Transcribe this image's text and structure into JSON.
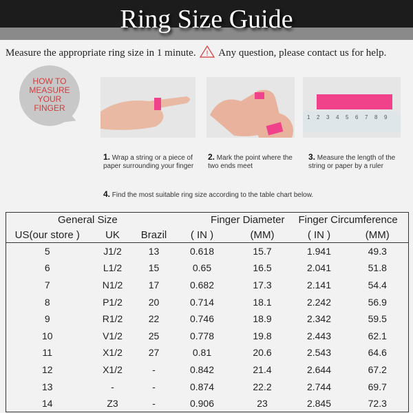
{
  "title": "Ring Size Guide",
  "intro": {
    "before": "Measure the appropriate ring size in 1 minute.",
    "after": "Any question, please contact us for help."
  },
  "bubble": {
    "line1": "HOW TO",
    "line2": "MEASURE",
    "line3": "YOUR",
    "line4": "FINGER"
  },
  "colors": {
    "accent": "#d13c3c",
    "tape": "#f0428a"
  },
  "ruler_numbers": [
    "1",
    "2",
    "3",
    "4",
    "5",
    "6",
    "7",
    "8",
    "9"
  ],
  "steps": [
    {
      "num": "1.",
      "text": "Wrap a string or a piece of paper surrounding your finger"
    },
    {
      "num": "2.",
      "text": "Mark the point where the two ends meet"
    },
    {
      "num": "3.",
      "text": "Measure the length of the string or paper by a ruler"
    },
    {
      "num": "4.",
      "text": "Find the most suitable ring size according to the table chart below."
    }
  ],
  "table": {
    "groups": [
      "General Size",
      "Finger Diameter",
      "Finger Circumference"
    ],
    "columns": [
      "US(our store )",
      "UK",
      "Brazil",
      "( IN )",
      "(MM)",
      "( IN )",
      "(MM)"
    ],
    "rows": [
      [
        "5",
        "J1/2",
        "13",
        "0.618",
        "15.7",
        "1.941",
        "49.3"
      ],
      [
        "6",
        "L1/2",
        "15",
        "0.65",
        "16.5",
        "2.041",
        "51.8"
      ],
      [
        "7",
        "N1/2",
        "17",
        "0.682",
        "17.3",
        "2.141",
        "54.4"
      ],
      [
        "8",
        "P1/2",
        "20",
        "0.714",
        "18.1",
        "2.242",
        "56.9"
      ],
      [
        "9",
        "R1/2",
        "22",
        "0.746",
        "18.9",
        "2.342",
        "59.5"
      ],
      [
        "10",
        "V1/2",
        "25",
        "0.778",
        "19.8",
        "2.443",
        "62.1"
      ],
      [
        "11",
        "X1/2",
        "27",
        "0.81",
        "20.6",
        "2.543",
        "64.6"
      ],
      [
        "12",
        "X1/2",
        "-",
        "0.842",
        "21.4",
        "2.644",
        "67.2"
      ],
      [
        "13",
        "-",
        "-",
        "0.874",
        "22.2",
        "2.744",
        "69.7"
      ],
      [
        "14",
        "Z3",
        "-",
        "0.906",
        "23",
        "2.845",
        "72.3"
      ]
    ]
  }
}
